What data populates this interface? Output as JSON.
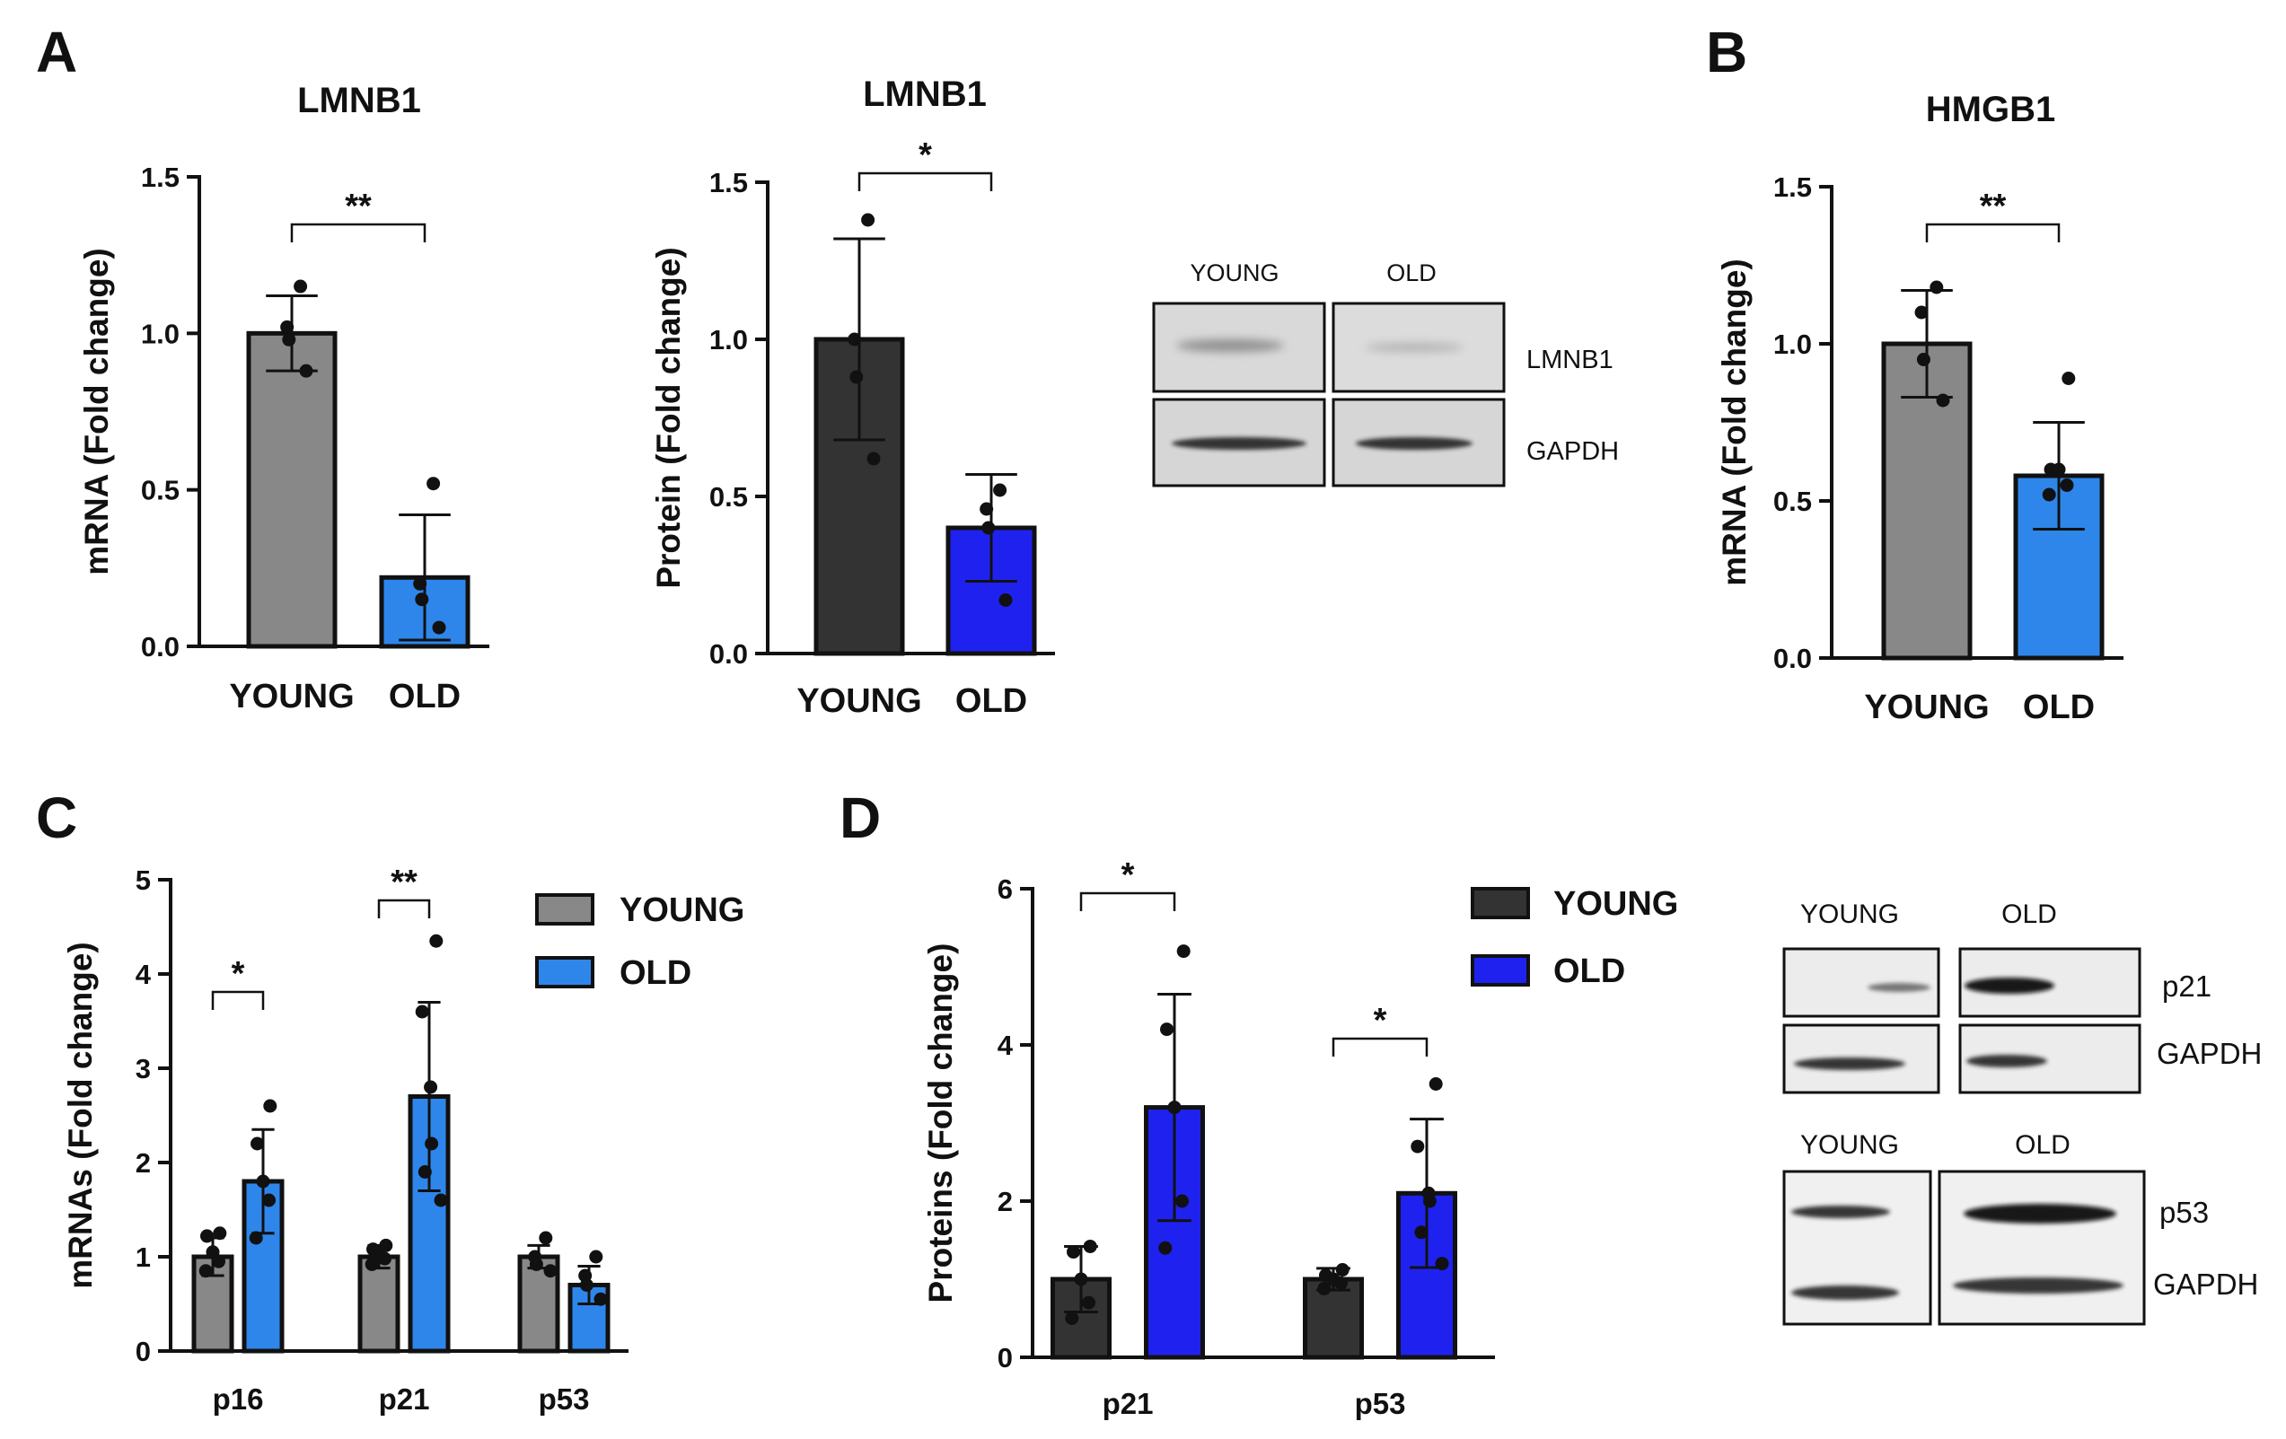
{
  "panel_labels": {
    "A": "A",
    "B": "B",
    "C": "C",
    "D": "D"
  },
  "colors": {
    "young_grey": "#888888",
    "young_dark": "#333333",
    "old_light_blue": "#2e86ea",
    "old_blue": "#1f22ee"
  },
  "chart_data": [
    {
      "id": "A1",
      "type": "bar",
      "title": "LMNB1",
      "ylabel": "mRNA (Fold change)",
      "ylim": [
        0,
        1.5
      ],
      "yticks": [
        "0.0",
        "0.5",
        "1.0",
        "1.5"
      ],
      "categories": [
        "YOUNG",
        "OLD"
      ],
      "values": [
        1.0,
        0.22
      ],
      "errors": [
        0.12,
        0.2
      ],
      "points": [
        [
          1.15,
          1.02,
          0.98,
          0.88
        ],
        [
          0.52,
          0.2,
          0.15,
          0.06
        ]
      ],
      "significance": [
        {
          "pair": [
            0,
            1
          ],
          "label": "**"
        }
      ],
      "colors": [
        "#888888",
        "#2e86ea"
      ]
    },
    {
      "id": "A2",
      "type": "bar",
      "title": "LMNB1",
      "ylabel": "Protein (Fold change)",
      "ylim": [
        0,
        1.5
      ],
      "yticks": [
        "0.0",
        "0.5",
        "1.0",
        "1.5"
      ],
      "categories": [
        "YOUNG",
        "OLD"
      ],
      "values": [
        1.0,
        0.4
      ],
      "errors": [
        0.32,
        0.17
      ],
      "points": [
        [
          1.38,
          1.0,
          0.88,
          0.62
        ],
        [
          0.52,
          0.46,
          0.4,
          0.17
        ]
      ],
      "significance": [
        {
          "pair": [
            0,
            1
          ],
          "label": "*"
        }
      ],
      "colors": [
        "#333333",
        "#1f22ee"
      ]
    },
    {
      "id": "B",
      "type": "bar",
      "title": "HMGB1",
      "ylabel": "mRNA (Fold change)",
      "ylim": [
        0,
        1.5
      ],
      "yticks": [
        "0.0",
        "0.5",
        "1.0",
        "1.5"
      ],
      "categories": [
        "YOUNG",
        "OLD"
      ],
      "values": [
        1.0,
        0.58
      ],
      "errors": [
        0.17,
        0.17
      ],
      "points": [
        [
          1.18,
          1.1,
          0.95,
          0.82
        ],
        [
          0.89,
          0.6,
          0.6,
          0.55,
          0.52
        ]
      ],
      "significance": [
        {
          "pair": [
            0,
            1
          ],
          "label": "**"
        }
      ],
      "colors": [
        "#888888",
        "#2e86ea"
      ]
    },
    {
      "id": "C",
      "type": "bar",
      "ylabel": "mRNAs (Fold change)",
      "ylim": [
        0,
        5
      ],
      "yticks": [
        "0",
        "1",
        "2",
        "3",
        "4",
        "5"
      ],
      "categories": [
        "p16",
        "p21",
        "p53"
      ],
      "series": [
        {
          "name": "YOUNG",
          "values": [
            1.0,
            1.0,
            1.0
          ],
          "errors": [
            0.2,
            0.12,
            0.12
          ],
          "points": [
            [
              1.25,
              1.22,
              1.05,
              0.95,
              0.85
            ],
            [
              1.12,
              1.08,
              1.02,
              0.98,
              0.92
            ],
            [
              1.2,
              1.0,
              0.92,
              0.85
            ]
          ]
        },
        {
          "name": "OLD",
          "values": [
            1.8,
            2.7,
            0.7
          ],
          "errors": [
            0.55,
            1.0,
            0.2
          ],
          "points": [
            [
              2.6,
              2.2,
              1.8,
              1.6,
              1.2
            ],
            [
              4.35,
              3.6,
              2.8,
              2.2,
              1.9,
              1.6
            ],
            [
              1.0,
              0.8,
              0.7,
              0.55
            ]
          ]
        }
      ],
      "significance": [
        {
          "category": 0,
          "label": "*"
        },
        {
          "category": 1,
          "label": "**"
        }
      ],
      "colors": [
        "#888888",
        "#2e86ea"
      ]
    },
    {
      "id": "D",
      "type": "bar",
      "ylabel": "Proteins (Fold change)",
      "ylim": [
        0,
        6
      ],
      "yticks": [
        "0",
        "2",
        "4",
        "6"
      ],
      "categories": [
        "p21",
        "p53"
      ],
      "series": [
        {
          "name": "YOUNG",
          "values": [
            1.0,
            1.0
          ],
          "errors": [
            0.42,
            0.14
          ],
          "points": [
            [
              1.42,
              1.35,
              1.0,
              0.7,
              0.5
            ],
            [
              1.12,
              1.05,
              1.0,
              0.95,
              0.88
            ]
          ]
        },
        {
          "name": "OLD",
          "values": [
            3.2,
            2.1
          ],
          "errors": [
            1.45,
            0.95
          ],
          "points": [
            [
              5.2,
              4.2,
              3.2,
              2.0,
              1.4
            ],
            [
              3.5,
              2.7,
              2.1,
              2.0,
              1.6,
              1.2
            ]
          ]
        }
      ],
      "significance": [
        {
          "category": 0,
          "label": "*"
        },
        {
          "category": 1,
          "label": "*"
        }
      ],
      "colors": [
        "#333333",
        "#1f22ee"
      ]
    }
  ],
  "blots": {
    "A": {
      "columns": [
        "YOUNG",
        "OLD"
      ],
      "rows": [
        "LMNB1",
        "GAPDH"
      ]
    },
    "D_top": {
      "columns": [
        "YOUNG",
        "OLD"
      ],
      "rows": [
        "p21",
        "GAPDH"
      ]
    },
    "D_bottom": {
      "columns": [
        "YOUNG",
        "OLD"
      ],
      "rows": [
        "p53",
        "GAPDH"
      ]
    }
  }
}
